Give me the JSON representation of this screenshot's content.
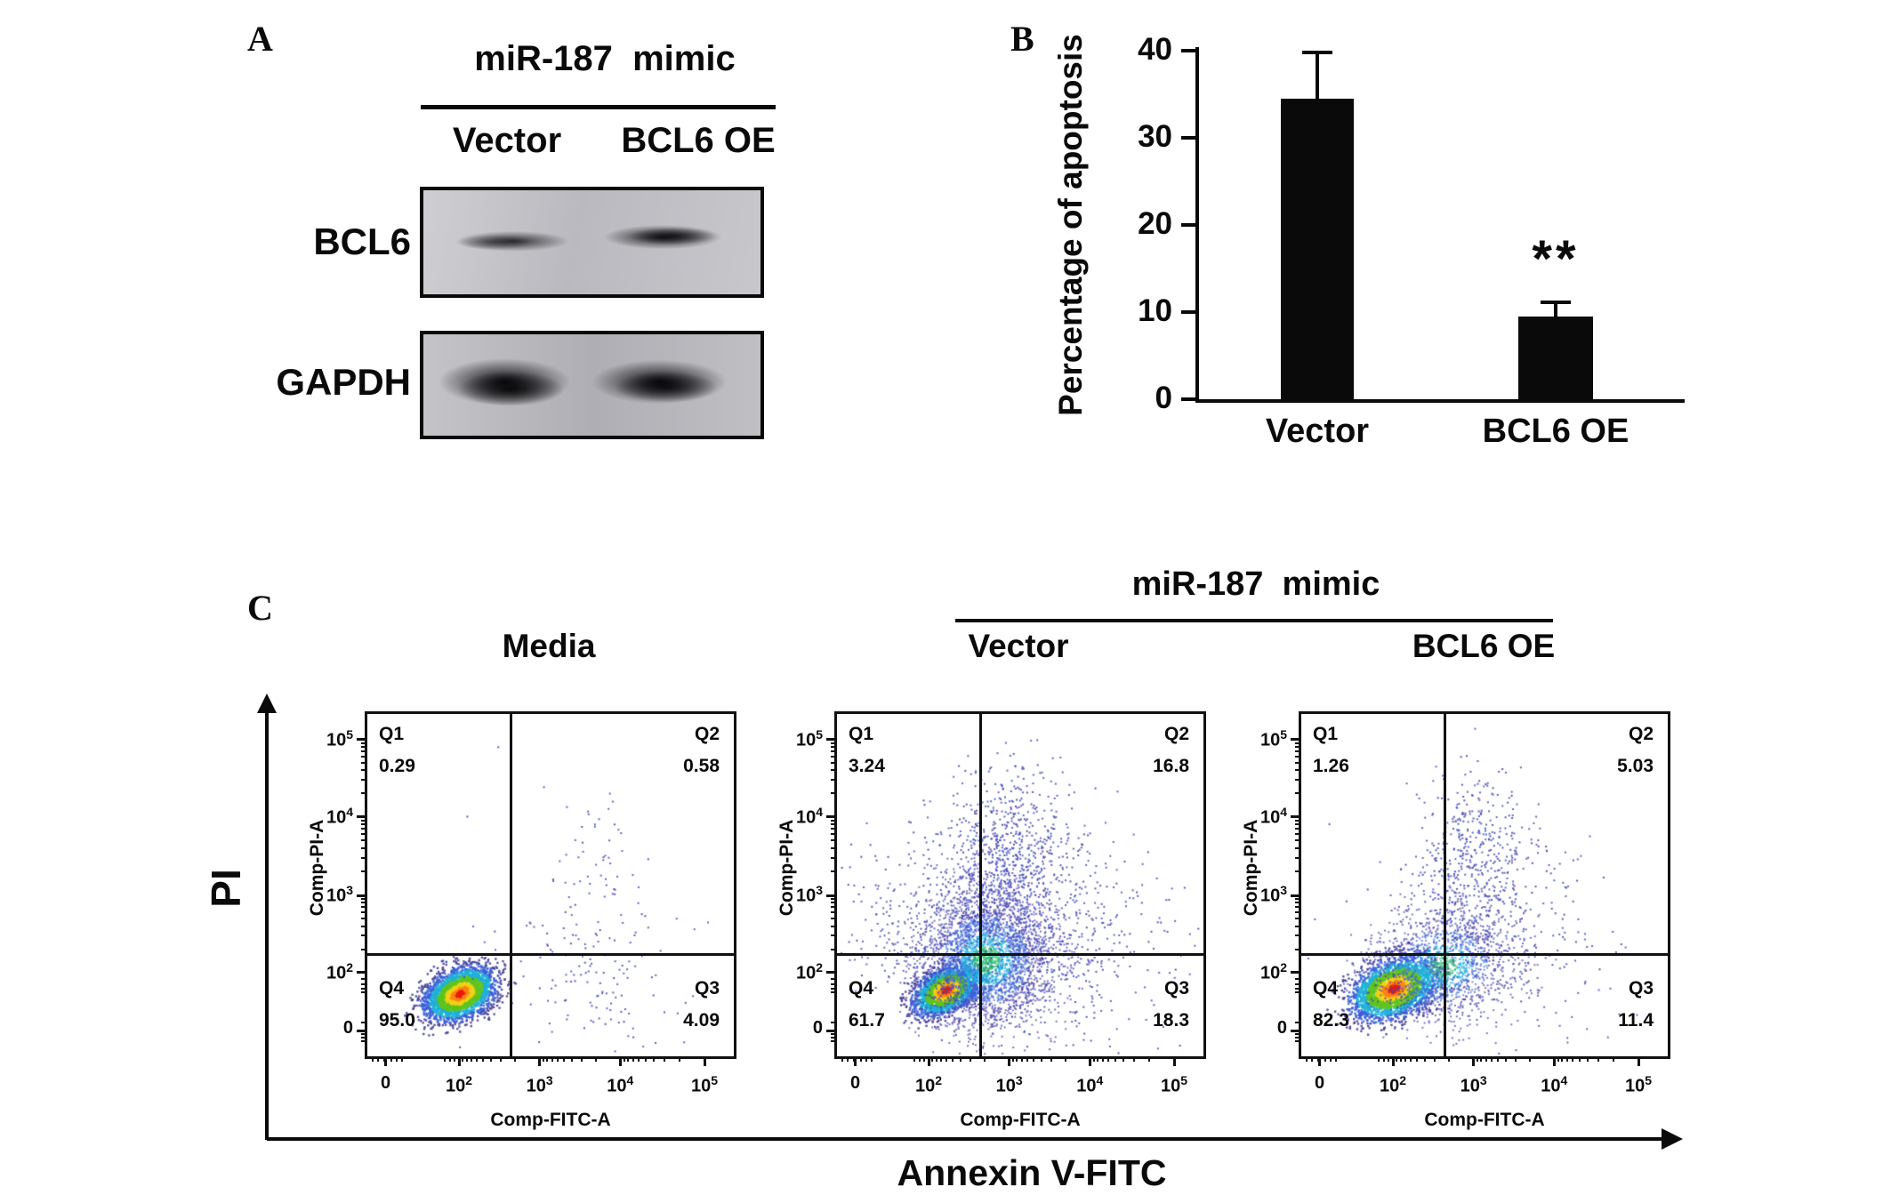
{
  "figure_labels": {
    "panelA": "A",
    "panelB": "B",
    "panelC": "C"
  },
  "panelA": {
    "group_header": "miR-187  mimic",
    "lane_labels": [
      "Vector",
      "BCL6 OE"
    ],
    "band_rows": [
      "BCL6",
      "GAPDH"
    ]
  },
  "panelC": {
    "group_header": "miR-187  mimic",
    "big_xlabel": "Annexin V-FITC",
    "big_ylabel": "PI"
  },
  "chart_data": [
    {
      "id": "apoptosis_bar",
      "type": "bar",
      "ylabel": "Percentage of apoptosis",
      "categories": [
        "Vector",
        "BCL6 OE"
      ],
      "values": [
        34.5,
        9.5
      ],
      "errors": [
        5.3,
        1.6
      ],
      "yticks": [
        0,
        10,
        20,
        30,
        40
      ],
      "ylim": [
        0,
        40
      ],
      "bar_color": "#0a0a0a",
      "significance": [
        {
          "category": "BCL6 OE",
          "marker": "**"
        }
      ],
      "legend": "none",
      "grid": false
    },
    {
      "id": "flow_media",
      "type": "scatter",
      "title": "Media",
      "xlabel": "Comp-FITC-A",
      "ylabel": "Comp-PI-A",
      "xtick_labels": [
        "0",
        "10^2",
        "10^3",
        "10^4",
        "10^5"
      ],
      "ytick_labels": [
        "10^5",
        "10^4",
        "10^3",
        "10^2",
        "0"
      ],
      "quadrants": [
        {
          "name": "Q1",
          "value": "0.29"
        },
        {
          "name": "Q2",
          "value": "0.58"
        },
        {
          "name": "Q3",
          "value": "4.09"
        },
        {
          "name": "Q4",
          "value": "95.0"
        }
      ],
      "gate_x_frac": 0.39,
      "gate_y_frac": 0.7,
      "clusters": [
        {
          "n": 3000,
          "cx": 0.25,
          "cy": 0.815,
          "sx": 0.052,
          "sy": 0.034,
          "rot": -30,
          "style": "heat"
        },
        {
          "n": 150,
          "cx": 0.6,
          "cy": 0.74,
          "sx": 0.13,
          "sy": 0.15,
          "rot": 0,
          "style": "sparse"
        },
        {
          "n": 42,
          "cx": 0.63,
          "cy": 0.46,
          "sx": 0.055,
          "sy": 0.12,
          "rot": 0,
          "style": "sparse"
        },
        {
          "n": 12,
          "cx": 0.45,
          "cy": 0.55,
          "sx": 0.3,
          "sy": 0.25,
          "rot": 0,
          "style": "sparse"
        }
      ]
    },
    {
      "id": "flow_vector",
      "type": "scatter",
      "title": "Vector",
      "xlabel": "Comp-FITC-A",
      "ylabel": "Comp-PI-A",
      "xtick_labels": [
        "0",
        "10^2",
        "10^3",
        "10^4",
        "10^5"
      ],
      "ytick_labels": [
        "10^5",
        "10^4",
        "10^3",
        "10^2",
        "0"
      ],
      "quadrants": [
        {
          "name": "Q1",
          "value": "3.24"
        },
        {
          "name": "Q2",
          "value": "16.8"
        },
        {
          "name": "Q3",
          "value": "18.3"
        },
        {
          "name": "Q4",
          "value": "61.7"
        }
      ],
      "gate_x_frac": 0.39,
      "gate_y_frac": 0.7,
      "clusters": [
        {
          "n": 2400,
          "cx": 0.295,
          "cy": 0.805,
          "sx": 0.048,
          "sy": 0.03,
          "rot": -33,
          "style": "heat"
        },
        {
          "n": 3400,
          "cx": 0.405,
          "cy": 0.715,
          "sx": 0.092,
          "sy": 0.102,
          "rot": 0,
          "style": "cool"
        },
        {
          "n": 900,
          "cx": 0.46,
          "cy": 0.44,
          "sx": 0.095,
          "sy": 0.135,
          "rot": 0,
          "style": "sparse"
        },
        {
          "n": 380,
          "cx": 0.64,
          "cy": 0.68,
          "sx": 0.145,
          "sy": 0.155,
          "rot": 0,
          "style": "sparse"
        },
        {
          "n": 170,
          "cx": 0.18,
          "cy": 0.6,
          "sx": 0.085,
          "sy": 0.11,
          "rot": 0,
          "style": "sparse"
        }
      ]
    },
    {
      "id": "flow_bcl6oe",
      "type": "scatter",
      "title": "BCL6 OE",
      "xlabel": "Comp-FITC-A",
      "ylabel": "Comp-PI-A",
      "xtick_labels": [
        "0",
        "10^2",
        "10^3",
        "10^4",
        "10^5"
      ],
      "ytick_labels": [
        "10^5",
        "10^4",
        "10^3",
        "10^2",
        "0"
      ],
      "quadrants": [
        {
          "name": "Q1",
          "value": "1.26"
        },
        {
          "name": "Q2",
          "value": "5.03"
        },
        {
          "name": "Q3",
          "value": "11.4"
        },
        {
          "name": "Q4",
          "value": "82.3"
        }
      ],
      "gate_x_frac": 0.39,
      "gate_y_frac": 0.7,
      "clusters": [
        {
          "n": 2800,
          "cx": 0.25,
          "cy": 0.8,
          "sx": 0.062,
          "sy": 0.04,
          "rot": -26,
          "style": "heat"
        },
        {
          "n": 1500,
          "cx": 0.385,
          "cy": 0.735,
          "sx": 0.098,
          "sy": 0.082,
          "rot": -12,
          "style": "cool"
        },
        {
          "n": 520,
          "cx": 0.47,
          "cy": 0.44,
          "sx": 0.075,
          "sy": 0.13,
          "rot": 0,
          "style": "sparse"
        },
        {
          "n": 200,
          "cx": 0.62,
          "cy": 0.67,
          "sx": 0.13,
          "sy": 0.14,
          "rot": 0,
          "style": "sparse"
        },
        {
          "n": 40,
          "cx": 0.25,
          "cy": 0.55,
          "sx": 0.12,
          "sy": 0.1,
          "rot": 0,
          "style": "sparse"
        }
      ]
    }
  ]
}
